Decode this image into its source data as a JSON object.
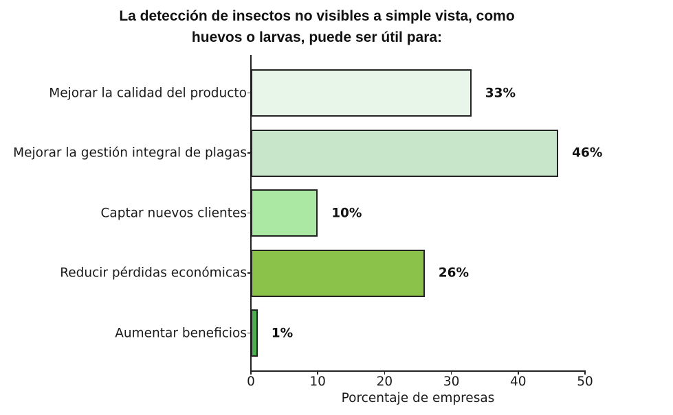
{
  "chart_data": {
    "type": "bar",
    "orientation": "horizontal",
    "title": "La detección de insectos no visibles a simple vista, como huevos o larvas, puede ser útil para:",
    "title_lines": [
      "La detección de insectos no visibles a simple vista, como",
      "huevos o larvas, puede ser útil para:"
    ],
    "categories": [
      "Mejorar la calidad del producto",
      "Mejorar la gestión integral de plagas",
      "Captar nuevos clientes",
      "Reducir pérdidas económicas",
      "Aumentar beneficios"
    ],
    "values": [
      33,
      46,
      10,
      26,
      1
    ],
    "value_labels": [
      "33%",
      "46%",
      "10%",
      "26%",
      "1%"
    ],
    "colors": [
      "#e8f5e9",
      "#c8e6c9",
      "#aae8a4",
      "#8bc34a",
      "#4caf50"
    ],
    "xlabel": "Porcentaje de empresas",
    "ylabel": "",
    "xlim": [
      0,
      50
    ],
    "xticks": [
      0,
      10,
      20,
      30,
      40,
      50
    ],
    "xtick_labels": [
      "0",
      "10",
      "20",
      "30",
      "40",
      "50"
    ],
    "grid": false,
    "legend": null
  }
}
